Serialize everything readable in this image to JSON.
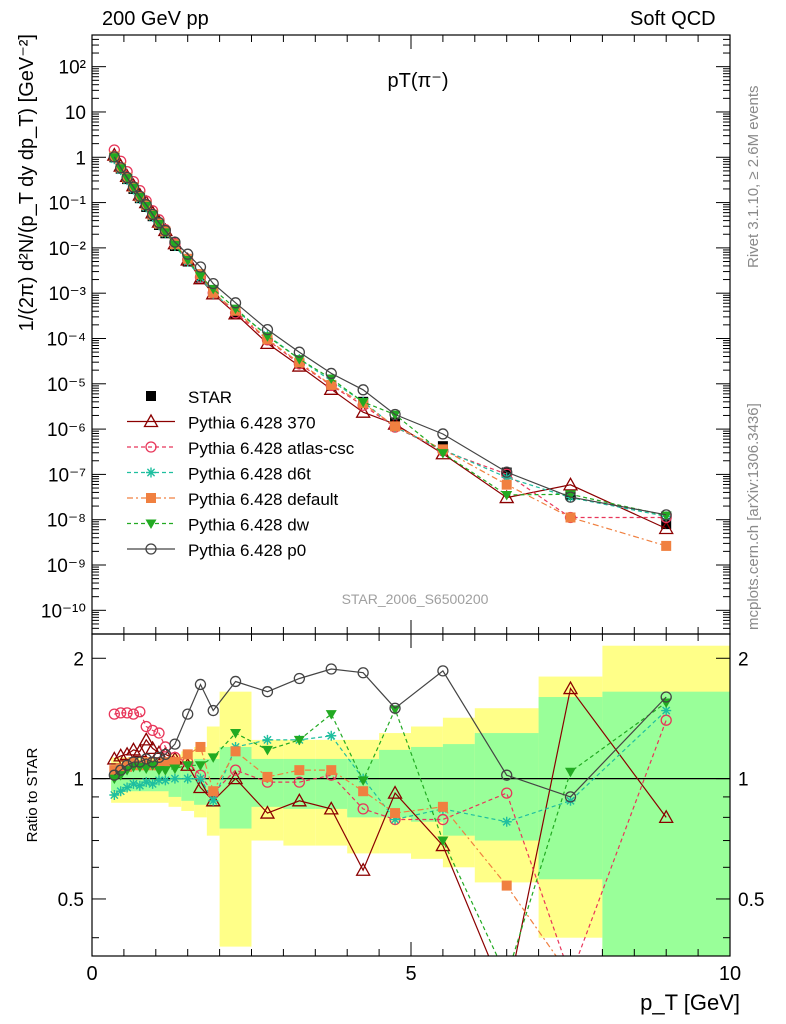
{
  "header": {
    "left": "200 GeV pp",
    "right": "Soft QCD"
  },
  "side": {
    "top": "Rivet 3.1.10, ≥ 2.6M events",
    "bottom": "mcplots.cern.ch [arXiv:1306.3436]"
  },
  "watermark": "STAR_2006_S6500200",
  "chart_data": {
    "type": "line",
    "title": "pT(π⁻)",
    "xlabel": "p_T [GeV]",
    "ylabel": "1/(2π) d²N/(p_T dy dp_T) [GeV⁻²]",
    "ratio_ylabel": "Ratio to STAR",
    "xlim": [
      0,
      10
    ],
    "ylim": [
      3e-11,
      500
    ],
    "ylog": true,
    "ratio_ylim": [
      0.36,
      2.3
    ],
    "ratio_ylog": true,
    "x_ticks": [
      "0",
      "5",
      "10"
    ],
    "y_ticks": [
      "10⁻¹⁰",
      "10⁻⁹",
      "10⁻⁸",
      "10⁻⁷",
      "10⁻⁶",
      "10⁻⁵",
      "10⁻⁴",
      "10⁻³",
      "10⁻²",
      "10⁻¹",
      "1",
      "10",
      "10²"
    ],
    "ratio_ticks": [
      "0.5",
      "1",
      "2"
    ],
    "legend_position": "middle-left",
    "x": [
      0.35,
      0.45,
      0.55,
      0.65,
      0.75,
      0.85,
      0.95,
      1.05,
      1.15,
      1.3,
      1.5,
      1.7,
      1.9,
      2.25,
      2.75,
      3.25,
      3.75,
      4.25,
      4.75,
      5.5,
      6.5,
      7.5,
      9.0
    ],
    "star": [
      1.0,
      0.56,
      0.33,
      0.2,
      0.125,
      0.08,
      0.05,
      0.032,
      0.021,
      0.011,
      0.005,
      0.0022,
      0.0011,
      0.00035,
      9.5e-05,
      2.8e-05,
      9e-06,
      4e-06,
      1.4e-06,
      4.2e-07,
      1.1e-07,
      3.5e-08,
      8e-09
    ],
    "band_edges": [
      0.3,
      1.2,
      1.4,
      1.6,
      1.8,
      2.0,
      2.5,
      3.0,
      3.5,
      4.0,
      4.5,
      5.0,
      5.5,
      6.0,
      7.0,
      8.0,
      10.0
    ],
    "band_inner": [
      [
        0.93,
        1.07
      ],
      [
        0.9,
        1.08
      ],
      [
        0.88,
        1.1
      ],
      [
        0.86,
        1.12
      ],
      [
        0.85,
        1.12
      ],
      [
        0.75,
        1.2
      ],
      [
        0.85,
        1.12
      ],
      [
        0.84,
        1.12
      ],
      [
        0.84,
        1.12
      ],
      [
        0.8,
        1.12
      ],
      [
        0.8,
        1.18
      ],
      [
        0.78,
        1.2
      ],
      [
        0.72,
        1.22
      ],
      [
        0.7,
        1.3
      ],
      [
        0.56,
        1.6
      ],
      [
        0.36,
        1.65
      ]
    ],
    "band_outer": [
      [
        0.87,
        1.13
      ],
      [
        0.85,
        1.15
      ],
      [
        0.83,
        1.17
      ],
      [
        0.8,
        1.2
      ],
      [
        0.72,
        1.35
      ],
      [
        0.38,
        1.65
      ],
      [
        0.7,
        1.25
      ],
      [
        0.68,
        1.25
      ],
      [
        0.68,
        1.25
      ],
      [
        0.65,
        1.25
      ],
      [
        0.65,
        1.3
      ],
      [
        0.63,
        1.35
      ],
      [
        0.6,
        1.42
      ],
      [
        0.55,
        1.5
      ],
      [
        0.4,
        1.8
      ],
      [
        0.36,
        2.15
      ]
    ],
    "series": [
      {
        "name": "STAR",
        "color": "#000000",
        "marker": "square-filled",
        "dash": "none",
        "ratio": [
          1,
          1,
          1,
          1,
          1,
          1,
          1,
          1,
          1,
          1,
          1,
          1,
          1,
          1,
          1,
          1,
          1,
          1,
          1,
          1,
          1,
          1,
          1
        ]
      },
      {
        "name": "Pythia 6.428 370",
        "color": "#8b0000",
        "marker": "triangle-open",
        "dash": "none",
        "ratio": [
          1.12,
          1.14,
          1.15,
          1.18,
          1.17,
          1.25,
          1.19,
          1.16,
          1.15,
          1.12,
          1.08,
          0.95,
          0.88,
          1.0,
          0.82,
          0.88,
          0.84,
          0.59,
          0.92,
          0.68,
          0.28,
          1.68,
          0.8
        ]
      },
      {
        "name": "Pythia 6.428 atlas-csc",
        "color": "#e8365a",
        "marker": "circle-open",
        "dash": "4,3",
        "ratio": [
          1.45,
          1.46,
          1.46,
          1.45,
          1.47,
          1.35,
          1.32,
          1.3,
          1.2,
          1.13,
          1.1,
          1.02,
          0.92,
          1.05,
          0.98,
          0.98,
          1.02,
          0.84,
          0.79,
          0.79,
          0.92,
          0.32,
          1.4
        ]
      },
      {
        "name": "Pythia 6.428 d6t",
        "color": "#1fbf9f",
        "marker": "star",
        "dash": "4,3",
        "ratio": [
          0.91,
          0.93,
          0.95,
          0.97,
          0.96,
          0.98,
          0.97,
          0.99,
          0.99,
          1.0,
          1.0,
          1.0,
          0.88,
          1.2,
          1.25,
          1.25,
          1.28,
          1.0,
          0.79,
          0.84,
          0.78,
          0.88,
          1.48
        ]
      },
      {
        "name": "Pythia 6.428 default",
        "color": "#f08040",
        "marker": "square-filled",
        "dash": "6,3,2,3",
        "ratio": [
          1.05,
          1.06,
          1.07,
          1.1,
          1.08,
          1.1,
          1.08,
          1.08,
          1.1,
          1.1,
          1.15,
          1.2,
          0.93,
          1.17,
          1.01,
          1.05,
          1.05,
          0.93,
          0.82,
          0.85,
          0.54,
          0.32,
          0.33
        ]
      },
      {
        "name": "Pythia 6.428 dw",
        "color": "#22aa22",
        "marker": "triangle-down-filled",
        "dash": "4,3",
        "ratio": [
          1.0,
          1.02,
          1.05,
          1.07,
          1.07,
          1.06,
          1.08,
          1.05,
          1.05,
          1.06,
          1.08,
          1.08,
          1.13,
          1.3,
          1.18,
          1.25,
          1.45,
          0.99,
          1.49,
          0.7,
          0.32,
          1.04,
          1.55
        ]
      },
      {
        "name": "Pythia 6.428 p0",
        "color": "#444444",
        "marker": "circle-open",
        "dash": "none",
        "ratio": [
          1.02,
          1.05,
          1.08,
          1.1,
          1.1,
          1.12,
          1.1,
          1.13,
          1.15,
          1.22,
          1.45,
          1.72,
          1.48,
          1.75,
          1.65,
          1.78,
          1.88,
          1.84,
          1.5,
          1.86,
          1.02,
          0.9,
          1.6
        ]
      }
    ]
  }
}
